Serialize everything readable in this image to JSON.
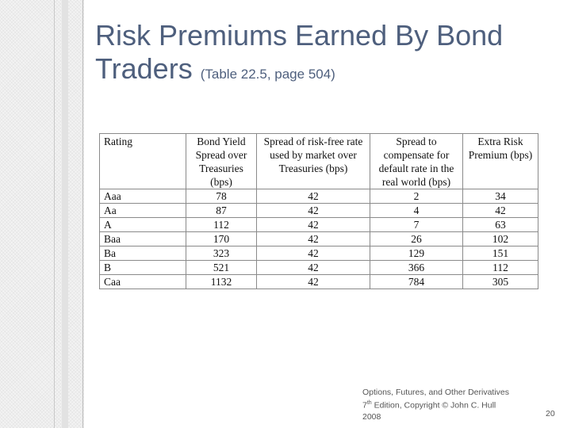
{
  "slide": {
    "title_main": "Risk Premiums Earned By Bond Traders",
    "title_sub": "(Table 22.5, page 504)",
    "page_number": "20",
    "footer": {
      "line1": "Options, Futures, and Other Derivatives",
      "edition_num": "7",
      "edition_sup": "th",
      "line2_rest": " Edition, Copyright © John C. Hull",
      "line3": "2008"
    }
  },
  "table": {
    "headers": [
      "Rating",
      "Bond Yield Spread over Treasuries (bps)",
      "Spread of risk-free rate used by market over Treasuries (bps)",
      "Spread to compensate for default rate in the real world (bps)",
      "Extra Risk Premium (bps)"
    ],
    "rows": [
      [
        "Aaa",
        "78",
        "42",
        "2",
        "34"
      ],
      [
        "Aa",
        "87",
        "42",
        "4",
        "42"
      ],
      [
        "A",
        "112",
        "42",
        "7",
        "63"
      ],
      [
        "Baa",
        "170",
        "42",
        "26",
        "102"
      ],
      [
        "Ba",
        "323",
        "42",
        "129",
        "151"
      ],
      [
        "B",
        "521",
        "42",
        "366",
        "112"
      ],
      [
        "Caa",
        "1132",
        "42",
        "784",
        "305"
      ]
    ]
  }
}
